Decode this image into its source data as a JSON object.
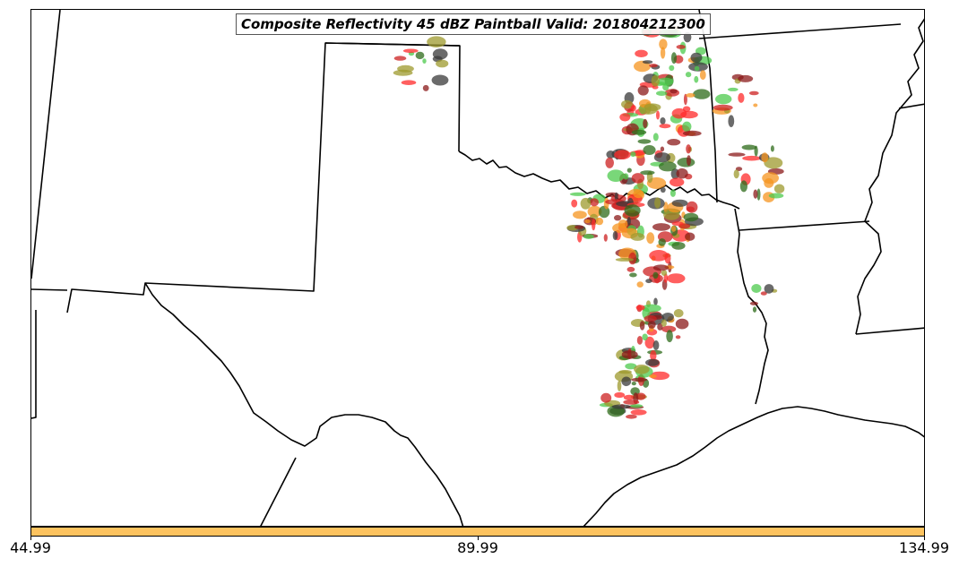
{
  "title": "Composite Reflectivity 45 dBZ Paintball Valid: 201804212300",
  "colorbar": {
    "color": "#fdc35f",
    "ticks": [
      "44.99",
      "89.99",
      "134.99"
    ]
  },
  "paintball_colors": [
    "#ff2a2a",
    "#f5941f",
    "#8b1a1a",
    "#4cc94c",
    "#9e9a2e",
    "#2e6b1a",
    "#3a3a3a",
    "#cc2020"
  ]
}
